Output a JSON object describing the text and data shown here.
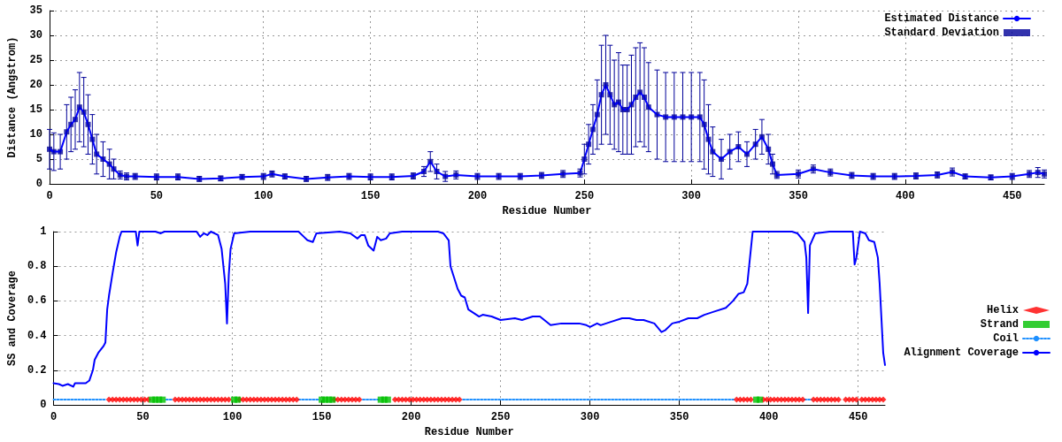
{
  "chart_data": [
    {
      "type": "line",
      "xlabel": "Residue Number",
      "ylabel": "Distance (Angstrom)",
      "xlim": [
        0,
        465
      ],
      "xticks": [
        0,
        50,
        100,
        150,
        200,
        250,
        300,
        350,
        400,
        450
      ],
      "ylim": [
        0,
        35
      ],
      "yticks": [
        0,
        5,
        10,
        15,
        20,
        25,
        30,
        35
      ],
      "grid": true,
      "legend": "top right",
      "marker": "none",
      "line_style": "solid",
      "x": [
        0,
        2,
        5,
        8,
        10,
        12,
        14,
        16,
        18,
        20,
        22,
        25,
        28,
        30,
        33,
        36,
        40,
        50,
        60,
        70,
        80,
        90,
        100,
        104,
        110,
        120,
        130,
        140,
        150,
        160,
        170,
        175,
        178,
        181,
        185,
        190,
        200,
        210,
        220,
        230,
        240,
        248,
        250,
        252,
        254,
        256,
        258,
        260,
        262,
        264,
        266,
        268,
        270,
        272,
        274,
        276,
        278,
        280,
        284,
        288,
        292,
        296,
        300,
        304,
        306,
        308,
        310,
        314,
        318,
        322,
        326,
        330,
        333,
        336,
        338,
        340,
        350,
        357,
        365,
        375,
        385,
        395,
        405,
        415,
        422,
        428,
        440,
        450,
        458,
        462,
        465
      ],
      "series": [
        {
          "name": "Estimated Distance",
          "color": "#0000ff",
          "values": [
            7,
            6.5,
            6.5,
            10.5,
            12,
            13,
            15.5,
            14.5,
            12,
            9,
            6,
            5,
            4,
            3,
            1.8,
            1.5,
            1.5,
            1.4,
            1.4,
            1,
            1.1,
            1.4,
            1.5,
            2,
            1.5,
            1,
            1.3,
            1.5,
            1.4,
            1.4,
            1.6,
            2.5,
            4.5,
            2.5,
            1.5,
            1.8,
            1.5,
            1.5,
            1.5,
            1.7,
            2,
            2.2,
            5,
            8,
            11,
            14,
            18,
            20,
            18,
            16,
            16.5,
            15,
            15,
            16,
            17.5,
            18.5,
            17.5,
            15.5,
            14,
            13.5,
            13.5,
            13.5,
            13.5,
            13.5,
            12,
            9,
            6.5,
            5,
            6.5,
            7.5,
            6,
            8,
            9.5,
            7,
            4,
            1.8,
            2,
            3,
            2.3,
            1.7,
            1.5,
            1.5,
            1.6,
            1.8,
            2.4,
            1.5,
            1.3,
            1.5,
            2,
            2.3,
            2
          ]
        },
        {
          "name": "Standard Deviation",
          "type": "scatter",
          "marker": "square",
          "color": "#000099",
          "values": [
            7,
            6.5,
            6.5,
            10.5,
            12,
            13,
            15.5,
            14.5,
            12,
            9,
            6,
            5,
            4,
            3,
            1.8,
            1.5,
            1.5,
            1.4,
            1.4,
            1,
            1.1,
            1.4,
            1.5,
            2,
            1.5,
            1,
            1.3,
            1.5,
            1.4,
            1.4,
            1.6,
            2.5,
            4.5,
            2.5,
            1.5,
            1.8,
            1.5,
            1.5,
            1.5,
            1.7,
            2,
            2.2,
            5,
            8,
            11,
            14,
            18,
            20,
            18,
            16,
            16.5,
            15,
            15,
            16,
            17.5,
            18.5,
            17.5,
            15.5,
            14,
            13.5,
            13.5,
            13.5,
            13.5,
            13.5,
            12,
            9,
            6.5,
            5,
            6.5,
            7.5,
            6,
            8,
            9.5,
            7,
            4,
            1.8,
            2,
            3,
            2.3,
            1.7,
            1.5,
            1.5,
            1.6,
            1.8,
            2.4,
            1.5,
            1.3,
            1.5,
            2,
            2.3,
            2
          ],
          "errors": [
            4,
            3.8,
            3.5,
            5.5,
            5.5,
            6,
            7,
            7,
            6,
            5,
            4,
            3.5,
            3,
            2,
            0.8,
            0.7,
            0.6,
            0.6,
            0.6,
            0.5,
            0.5,
            0.5,
            0.6,
            0.6,
            0.5,
            0.5,
            0.6,
            0.6,
            0.6,
            0.6,
            0.6,
            1,
            2,
            1.5,
            1,
            0.8,
            0.6,
            0.6,
            0.6,
            0.6,
            0.7,
            0.8,
            3,
            4,
            5,
            7,
            10,
            10,
            10,
            9,
            10,
            9,
            9,
            10,
            10,
            10,
            10,
            9,
            9,
            9,
            9,
            9,
            9,
            9,
            9,
            7,
            5,
            4,
            3.5,
            3,
            2.5,
            3,
            3.5,
            3,
            2,
            0.7,
            0.8,
            0.8,
            0.7,
            0.6,
            0.6,
            0.6,
            0.6,
            0.6,
            0.8,
            0.5,
            0.5,
            0.6,
            0.7,
            1,
            0.8
          ]
        }
      ]
    },
    {
      "type": "line",
      "xlabel": "Residue Number",
      "ylabel": "SS and Coverage",
      "xlim": [
        0,
        465
      ],
      "xticks": [
        0,
        50,
        100,
        150,
        200,
        250,
        300,
        350,
        400,
        450
      ],
      "ylim": [
        0,
        1
      ],
      "yticks": [
        0,
        0.2,
        0.4,
        0.6,
        0.8,
        1
      ],
      "grid": true,
      "legend": "right",
      "marker": "none",
      "line_style": "solid",
      "series": [
        {
          "name": "Helix",
          "type": "scatter",
          "marker": "diamond",
          "color": "#ff0000",
          "x": [
            31,
            33,
            35,
            37,
            39,
            41,
            43,
            45,
            47,
            49,
            51,
            53,
            68,
            70,
            72,
            74,
            76,
            78,
            80,
            82,
            84,
            86,
            88,
            90,
            92,
            94,
            96,
            98,
            104,
            106,
            108,
            110,
            112,
            114,
            116,
            118,
            120,
            122,
            124,
            126,
            128,
            130,
            132,
            134,
            136,
            157,
            159,
            161,
            163,
            165,
            167,
            169,
            171,
            191,
            193,
            195,
            197,
            199,
            201,
            203,
            205,
            207,
            209,
            211,
            213,
            215,
            217,
            219,
            221,
            223,
            225,
            227,
            382,
            384,
            386,
            388,
            390,
            397,
            399,
            401,
            403,
            405,
            407,
            409,
            411,
            413,
            415,
            417,
            419,
            425,
            427,
            429,
            431,
            433,
            435,
            437,
            439,
            443,
            445,
            447,
            449,
            452,
            454,
            456,
            458,
            460,
            462,
            464
          ],
          "values": [
            0.03,
            0.03,
            0.03,
            0.03,
            0.03,
            0.03,
            0.03,
            0.03,
            0.03,
            0.03,
            0.03,
            0.03,
            0.03,
            0.03,
            0.03,
            0.03,
            0.03,
            0.03,
            0.03,
            0.03,
            0.03,
            0.03,
            0.03,
            0.03,
            0.03,
            0.03,
            0.03,
            0.03,
            0.03,
            0.03,
            0.03,
            0.03,
            0.03,
            0.03,
            0.03,
            0.03,
            0.03,
            0.03,
            0.03,
            0.03,
            0.03,
            0.03,
            0.03,
            0.03,
            0.03,
            0.03,
            0.03,
            0.03,
            0.03,
            0.03,
            0.03,
            0.03,
            0.03,
            0.03,
            0.03,
            0.03,
            0.03,
            0.03,
            0.03,
            0.03,
            0.03,
            0.03,
            0.03,
            0.03,
            0.03,
            0.03,
            0.03,
            0.03,
            0.03,
            0.03,
            0.03,
            0.03,
            0.03,
            0.03,
            0.03,
            0.03,
            0.03,
            0.03,
            0.03,
            0.03,
            0.03,
            0.03,
            0.03,
            0.03,
            0.03,
            0.03,
            0.03,
            0.03,
            0.03,
            0.03,
            0.03,
            0.03,
            0.03,
            0.03,
            0.03,
            0.03,
            0.03,
            0.03,
            0.03,
            0.03,
            0.03,
            0.03,
            0.03,
            0.03,
            0.03,
            0.03,
            0.03,
            0.03
          ]
        },
        {
          "name": "Strand",
          "type": "scatter",
          "marker": "square",
          "color": "#00c000",
          "x": [
            55,
            57,
            59,
            61,
            101,
            103,
            150,
            152,
            154,
            156,
            183,
            185,
            187,
            393,
            395
          ],
          "values": [
            0.03,
            0.03,
            0.03,
            0.03,
            0.03,
            0.03,
            0.03,
            0.03,
            0.03,
            0.03,
            0.03,
            0.03,
            0.03,
            0.03,
            0.03
          ]
        },
        {
          "name": "Coil",
          "type": "line",
          "line_style": "dotted",
          "color": "#1e90ff",
          "x": [
            0,
            29,
            30,
            63,
            66,
            67,
            137,
            148,
            149,
            173,
            182,
            182.5,
            229,
            381,
            381.5,
            420,
            424
          ],
          "values": [
            0.03,
            0.03,
            null,
            0.03,
            0.03,
            null,
            0.03,
            0.03,
            null,
            0.03,
            0.03,
            null,
            0.03,
            0.03,
            null,
            0.03,
            0.03
          ]
        },
        {
          "name": "Alignment Coverage",
          "type": "line",
          "color": "#0000ff",
          "x": [
            0,
            3,
            5,
            8,
            11,
            12,
            18,
            20,
            22,
            23,
            25,
            28,
            29,
            30,
            31,
            33,
            35,
            37,
            38,
            46,
            47,
            48,
            52,
            57,
            60,
            62,
            80,
            82,
            84,
            86,
            88,
            92,
            94,
            96,
            97,
            98,
            99,
            101,
            110,
            137,
            140,
            142,
            145,
            147,
            160,
            166,
            170,
            172,
            174,
            176,
            179,
            181,
            183,
            186,
            188,
            195,
            215,
            218,
            221,
            222,
            226,
            228,
            230,
            232,
            235,
            238,
            240,
            245,
            250,
            258,
            262,
            268,
            272,
            278,
            284,
            290,
            294,
            298,
            300,
            304,
            306,
            312,
            318,
            322,
            326,
            330,
            336,
            340,
            342,
            346,
            350,
            355,
            360,
            364,
            370,
            376,
            380,
            383,
            386,
            388,
            390,
            391,
            394,
            413,
            416,
            420,
            421,
            422,
            423,
            426,
            434,
            447,
            448,
            449,
            451,
            454,
            456,
            459,
            461,
            462,
            463,
            464,
            465
          ],
          "values": [
            0.125,
            0.12,
            0.11,
            0.12,
            0.105,
            0.125,
            0.125,
            0.14,
            0.2,
            0.26,
            0.3,
            0.34,
            0.36,
            0.55,
            0.63,
            0.76,
            0.88,
            0.97,
            1,
            1,
            0.92,
            1,
            1,
            1,
            0.99,
            1,
            1,
            0.97,
            0.99,
            0.98,
            1,
            0.98,
            0.9,
            0.7,
            0.47,
            0.75,
            0.9,
            0.99,
            1,
            1,
            0.97,
            0.95,
            0.94,
            0.99,
            1,
            0.99,
            0.96,
            0.98,
            0.98,
            0.92,
            0.89,
            0.97,
            0.95,
            0.96,
            0.99,
            1,
            1,
            0.99,
            0.95,
            0.8,
            0.67,
            0.63,
            0.62,
            0.55,
            0.53,
            0.51,
            0.52,
            0.51,
            0.49,
            0.5,
            0.49,
            0.51,
            0.51,
            0.46,
            0.47,
            0.47,
            0.47,
            0.46,
            0.45,
            0.47,
            0.46,
            0.48,
            0.5,
            0.5,
            0.49,
            0.49,
            0.47,
            0.42,
            0.43,
            0.47,
            0.48,
            0.5,
            0.5,
            0.52,
            0.54,
            0.56,
            0.6,
            0.64,
            0.65,
            0.7,
            0.9,
            1,
            1,
            1,
            0.99,
            0.94,
            0.85,
            0.53,
            0.92,
            0.99,
            1,
            1,
            0.81,
            0.85,
            1,
            0.99,
            0.95,
            0.94,
            0.85,
            0.7,
            0.5,
            0.3,
            0.23
          ]
        }
      ]
    }
  ]
}
